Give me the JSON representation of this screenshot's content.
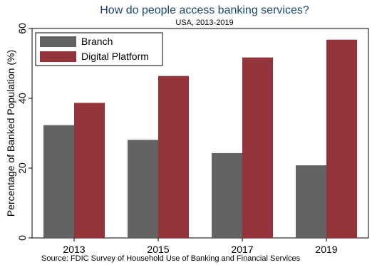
{
  "chart_data": {
    "type": "bar",
    "title": "How do people access banking services?",
    "subtitle": "USA, 2013-2019",
    "ylabel": "Percentage of Banked Population (%)",
    "xlabel": "",
    "categories": [
      "2013",
      "2015",
      "2017",
      "2019"
    ],
    "series": [
      {
        "name": "Branch",
        "color": "#636363",
        "values": [
          32.3,
          28.1,
          24.3,
          20.8
        ]
      },
      {
        "name": "Digital Platform",
        "color": "#93343a",
        "values": [
          38.7,
          46.4,
          51.7,
          56.8
        ]
      }
    ],
    "ylim": [
      0,
      60
    ],
    "yticks": [
      0,
      20,
      40,
      60
    ],
    "grid": false,
    "legend_position": "top-left",
    "note": "Source: FDIC Survey of Household Use of Banking and Financial Services"
  }
}
